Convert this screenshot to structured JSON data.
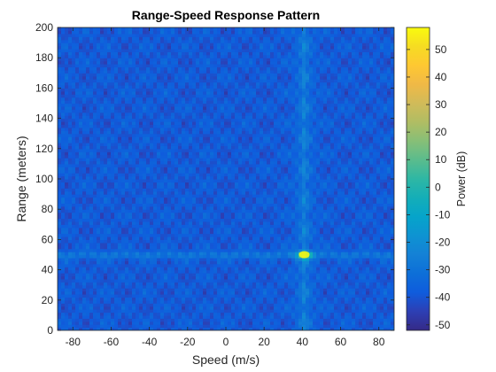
{
  "chart_data": {
    "type": "heatmap",
    "title": "Range-Speed Response Pattern",
    "xlabel": "Speed (m/s)",
    "ylabel": "Range (meters)",
    "colorbar_label": "Power (dB)",
    "xlim": [
      -88,
      88
    ],
    "ylim": [
      0,
      200
    ],
    "clim": [
      -52,
      58
    ],
    "x_ticks": [
      -80,
      -60,
      -40,
      -20,
      0,
      20,
      40,
      60,
      80
    ],
    "y_ticks": [
      0,
      20,
      40,
      60,
      80,
      100,
      120,
      140,
      160,
      180,
      200
    ],
    "cbar_ticks": [
      -50,
      -40,
      -30,
      -20,
      -10,
      0,
      10,
      20,
      30,
      40,
      50
    ],
    "colormap": "parula",
    "grid": false,
    "target": {
      "speed": 41,
      "range": 50,
      "peak_power_db": 58
    },
    "background_power_db": [
      -45,
      -32
    ]
  }
}
